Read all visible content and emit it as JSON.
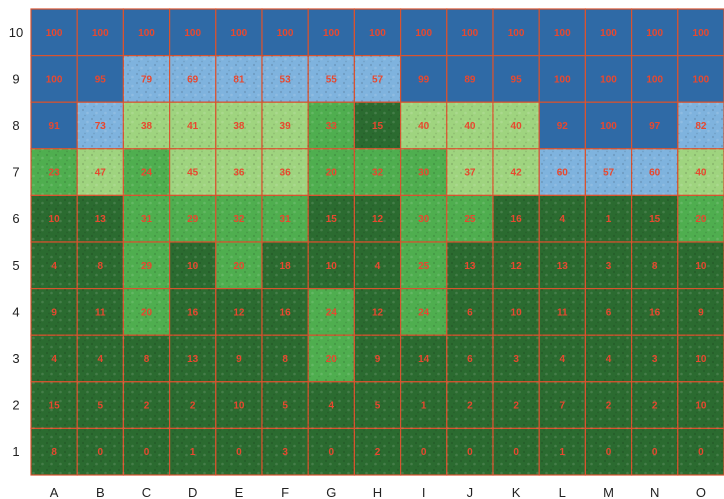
{
  "palette": {
    "sky_dark": "#2f6aa6",
    "sky_light": "#7fb3de",
    "canopy_light": "#9fd47f",
    "canopy_mid": "#4fae4f",
    "canopy_dark": "#2b6b30",
    "grid_line": "#d9532f",
    "value_text": "#e8482f"
  },
  "grid": {
    "columns": [
      "A",
      "B",
      "C",
      "D",
      "E",
      "F",
      "G",
      "H",
      "I",
      "J",
      "K",
      "L",
      "M",
      "N",
      "O"
    ],
    "rows": [
      "10",
      "9",
      "8",
      "7",
      "6",
      "5",
      "4",
      "3",
      "2",
      "1"
    ],
    "values": [
      [
        100,
        100,
        100,
        100,
        100,
        100,
        100,
        100,
        100,
        100,
        100,
        100,
        100,
        100,
        100
      ],
      [
        100,
        95,
        79,
        69,
        81,
        53,
        55,
        57,
        99,
        89,
        95,
        100,
        100,
        100,
        100
      ],
      [
        91,
        73,
        38,
        41,
        38,
        39,
        33,
        15,
        40,
        40,
        40,
        92,
        100,
        97,
        82
      ],
      [
        23,
        47,
        24,
        45,
        36,
        36,
        20,
        32,
        30,
        37,
        42,
        60,
        57,
        60,
        40
      ],
      [
        10,
        13,
        31,
        29,
        32,
        31,
        15,
        12,
        30,
        25,
        16,
        4,
        1,
        15,
        20
      ],
      [
        4,
        8,
        29,
        10,
        20,
        18,
        10,
        4,
        25,
        13,
        12,
        13,
        3,
        8,
        10
      ],
      [
        9,
        11,
        20,
        16,
        12,
        16,
        24,
        12,
        24,
        6,
        10,
        11,
        6,
        16,
        9
      ],
      [
        4,
        4,
        8,
        13,
        9,
        8,
        20,
        9,
        14,
        6,
        3,
        4,
        4,
        3,
        10
      ],
      [
        15,
        5,
        2,
        2,
        10,
        5,
        4,
        5,
        1,
        2,
        2,
        7,
        2,
        2,
        10
      ],
      [
        8,
        0,
        0,
        1,
        0,
        3,
        0,
        2,
        0,
        0,
        0,
        1,
        0,
        0,
        0
      ]
    ]
  }
}
